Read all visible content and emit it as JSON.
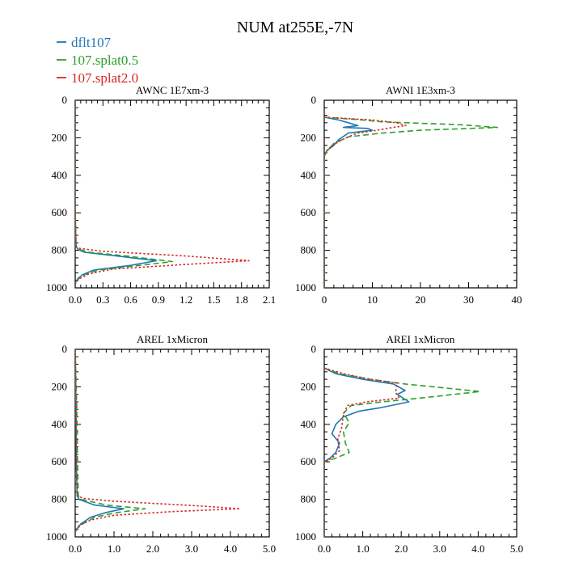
{
  "chart_data": {
    "type": "line",
    "title": "NUM at255E,-7N",
    "legend": {
      "placement": "top-left",
      "entries": [
        {
          "name": "dflt107",
          "color": "#1f77b4",
          "style": "solid"
        },
        {
          "name": "107.splat0.5",
          "color": "#2ca02c",
          "style": "dashed"
        },
        {
          "name": "107.splat2.0",
          "color": "#d62728",
          "style": "dotted"
        }
      ]
    },
    "panels": [
      {
        "title": "AWNC  1E7xm-3",
        "xlim": [
          0,
          2.1
        ],
        "ylim": [
          1000,
          0
        ],
        "xticks": [
          0,
          0.3,
          0.6,
          0.9,
          1.2,
          1.5,
          1.8,
          2.1
        ],
        "xtick_labels": [
          "0.0",
          "0.3",
          "0.6",
          "0.9",
          "1.2",
          "1.5",
          "1.8",
          "2.1"
        ],
        "yticks": [
          0,
          200,
          400,
          600,
          800,
          1000
        ],
        "ytick_labels": [
          "0",
          "200",
          "400",
          "600",
          "800",
          "1000"
        ],
        "series": [
          {
            "name": "dflt107",
            "points": [
              [
                0,
                0
              ],
              [
                0,
                600
              ],
              [
                0.01,
                780
              ],
              [
                0.03,
                795
              ],
              [
                0.1,
                810
              ],
              [
                0.45,
                830
              ],
              [
                0.88,
                855
              ],
              [
                0.6,
                880
              ],
              [
                0.2,
                905
              ],
              [
                0.08,
                930
              ],
              [
                0.03,
                950
              ],
              [
                0.01,
                965
              ],
              [
                0,
                980
              ]
            ]
          },
          {
            "name": "107.splat0.5",
            "points": [
              [
                0,
                0
              ],
              [
                0,
                600
              ],
              [
                0.01,
                780
              ],
              [
                0.04,
                795
              ],
              [
                0.15,
                810
              ],
              [
                0.55,
                830
              ],
              [
                1.05,
                860
              ],
              [
                0.7,
                880
              ],
              [
                0.25,
                905
              ],
              [
                0.1,
                930
              ],
              [
                0.04,
                950
              ],
              [
                0.01,
                965
              ],
              [
                0,
                980
              ]
            ]
          },
          {
            "name": "107.splat2.0",
            "points": [
              [
                0,
                0
              ],
              [
                0,
                600
              ],
              [
                0.01,
                780
              ],
              [
                0.05,
                790
              ],
              [
                0.3,
                805
              ],
              [
                1.2,
                830
              ],
              [
                1.88,
                855
              ],
              [
                1.2,
                875
              ],
              [
                0.4,
                900
              ],
              [
                0.15,
                925
              ],
              [
                0.05,
                950
              ],
              [
                0.02,
                965
              ],
              [
                0,
                980
              ]
            ]
          }
        ]
      },
      {
        "title": "AWNI  1E3xm-3",
        "xlim": [
          0,
          40
        ],
        "ylim": [
          1000,
          0
        ],
        "xticks": [
          0,
          10,
          20,
          30,
          40
        ],
        "xtick_labels": [
          "0",
          "10",
          "20",
          "30",
          "40"
        ],
        "yticks": [
          0,
          200,
          400,
          600,
          800,
          1000
        ],
        "ytick_labels": [
          "0",
          "200",
          "400",
          "600",
          "800",
          "1000"
        ],
        "series": [
          {
            "name": "dflt107",
            "points": [
              [
                0,
                90
              ],
              [
                3,
                105
              ],
              [
                5,
                120
              ],
              [
                7,
                135
              ],
              [
                4,
                145
              ],
              [
                9,
                150
              ],
              [
                10,
                160
              ],
              [
                5,
                175
              ],
              [
                3,
                210
              ],
              [
                2,
                240
              ],
              [
                0.5,
                270
              ],
              [
                0,
                300
              ],
              [
                0,
                1000
              ]
            ]
          },
          {
            "name": "107.splat0.5",
            "points": [
              [
                0,
                90
              ],
              [
                8,
                105
              ],
              [
                12,
                115
              ],
              [
                28,
                130
              ],
              [
                36,
                145
              ],
              [
                20,
                160
              ],
              [
                12,
                175
              ],
              [
                5,
                195
              ],
              [
                2,
                230
              ],
              [
                0.5,
                270
              ],
              [
                0,
                300
              ],
              [
                0,
                1000
              ]
            ]
          },
          {
            "name": "107.splat2.0",
            "points": [
              [
                0,
                90
              ],
              [
                10,
                105
              ],
              [
                15,
                120
              ],
              [
                17,
                135
              ],
              [
                13,
                150
              ],
              [
                11,
                160
              ],
              [
                7,
                175
              ],
              [
                5,
                195
              ],
              [
                3,
                220
              ],
              [
                1,
                255
              ],
              [
                0,
                290
              ],
              [
                0,
                1000
              ]
            ]
          }
        ]
      },
      {
        "title": "AREL  1xMicron",
        "xlim": [
          0,
          5
        ],
        "ylim": [
          1000,
          0
        ],
        "xticks": [
          0,
          1,
          2,
          3,
          4,
          5
        ],
        "xtick_labels": [
          "0.0",
          "1.0",
          "2.0",
          "3.0",
          "4.0",
          "5.0"
        ],
        "yticks": [
          0,
          200,
          400,
          600,
          800,
          1000
        ],
        "ytick_labels": [
          "0",
          "200",
          "400",
          "600",
          "800",
          "1000"
        ],
        "series": [
          {
            "name": "dflt107",
            "points": [
              [
                0,
                0
              ],
              [
                0.02,
                300
              ],
              [
                0.03,
                600
              ],
              [
                0.05,
                780
              ],
              [
                0.1,
                800
              ],
              [
                0.5,
                830
              ],
              [
                1.25,
                850
              ],
              [
                0.8,
                870
              ],
              [
                0.4,
                895
              ],
              [
                0.15,
                930
              ],
              [
                0.05,
                955
              ],
              [
                0,
                975
              ]
            ]
          },
          {
            "name": "107.splat0.5",
            "points": [
              [
                0,
                0
              ],
              [
                0.04,
                300
              ],
              [
                0.06,
                600
              ],
              [
                0.08,
                780
              ],
              [
                0.15,
                800
              ],
              [
                0.8,
                830
              ],
              [
                1.8,
                850
              ],
              [
                1.1,
                870
              ],
              [
                0.5,
                895
              ],
              [
                0.2,
                930
              ],
              [
                0.05,
                955
              ],
              [
                0,
                975
              ]
            ]
          },
          {
            "name": "107.splat2.0",
            "points": [
              [
                0,
                0
              ],
              [
                0.02,
                300
              ],
              [
                0.03,
                600
              ],
              [
                0.05,
                780
              ],
              [
                0.2,
                795
              ],
              [
                1.0,
                810
              ],
              [
                3.2,
                835
              ],
              [
                4.25,
                850
              ],
              [
                2.5,
                865
              ],
              [
                1.0,
                885
              ],
              [
                0.4,
                910
              ],
              [
                0.1,
                940
              ],
              [
                0.03,
                960
              ],
              [
                0,
                975
              ]
            ]
          }
        ]
      },
      {
        "title": "AREI  1xMicron",
        "xlim": [
          0,
          5
        ],
        "ylim": [
          1000,
          0
        ],
        "xticks": [
          0,
          1,
          2,
          3,
          4,
          5
        ],
        "xtick_labels": [
          "0.0",
          "1.0",
          "2.0",
          "3.0",
          "4.0",
          "5.0"
        ],
        "yticks": [
          0,
          200,
          400,
          600,
          800,
          1000
        ],
        "ytick_labels": [
          "0",
          "200",
          "400",
          "600",
          "800",
          "1000"
        ],
        "series": [
          {
            "name": "dflt107",
            "points": [
              [
                0,
                100
              ],
              [
                0.3,
                130
              ],
              [
                1.0,
                160
              ],
              [
                1.8,
                185
              ],
              [
                2.1,
                220
              ],
              [
                1.9,
                240
              ],
              [
                2.2,
                280
              ],
              [
                1.5,
                310
              ],
              [
                0.9,
                330
              ],
              [
                0.5,
                360
              ],
              [
                0.3,
                400
              ],
              [
                0.2,
                450
              ],
              [
                0.4,
                500
              ],
              [
                0.3,
                550
              ],
              [
                0.15,
                580
              ],
              [
                0,
                600
              ],
              [
                0,
                1000
              ]
            ]
          },
          {
            "name": "107.splat0.5",
            "points": [
              [
                0,
                100
              ],
              [
                0.4,
                130
              ],
              [
                1.2,
                160
              ],
              [
                2.1,
                185
              ],
              [
                4.05,
                225
              ],
              [
                2.5,
                260
              ],
              [
                1.5,
                280
              ],
              [
                0.7,
                300
              ],
              [
                0.5,
                340
              ],
              [
                0.65,
                390
              ],
              [
                0.5,
                440
              ],
              [
                0.55,
                500
              ],
              [
                0.65,
                550
              ],
              [
                0.3,
                580
              ],
              [
                0,
                600
              ],
              [
                0,
                1000
              ]
            ]
          },
          {
            "name": "107.splat2.0",
            "points": [
              [
                0,
                100
              ],
              [
                0.5,
                130
              ],
              [
                1.2,
                160
              ],
              [
                1.9,
                180
              ],
              [
                1.85,
                230
              ],
              [
                1.95,
                260
              ],
              [
                1.1,
                280
              ],
              [
                0.6,
                300
              ],
              [
                0.5,
                350
              ],
              [
                0.45,
                420
              ],
              [
                0.35,
                480
              ],
              [
                0.4,
                540
              ],
              [
                0.2,
                580
              ],
              [
                0,
                600
              ],
              [
                0,
                1000
              ]
            ]
          }
        ]
      }
    ]
  }
}
